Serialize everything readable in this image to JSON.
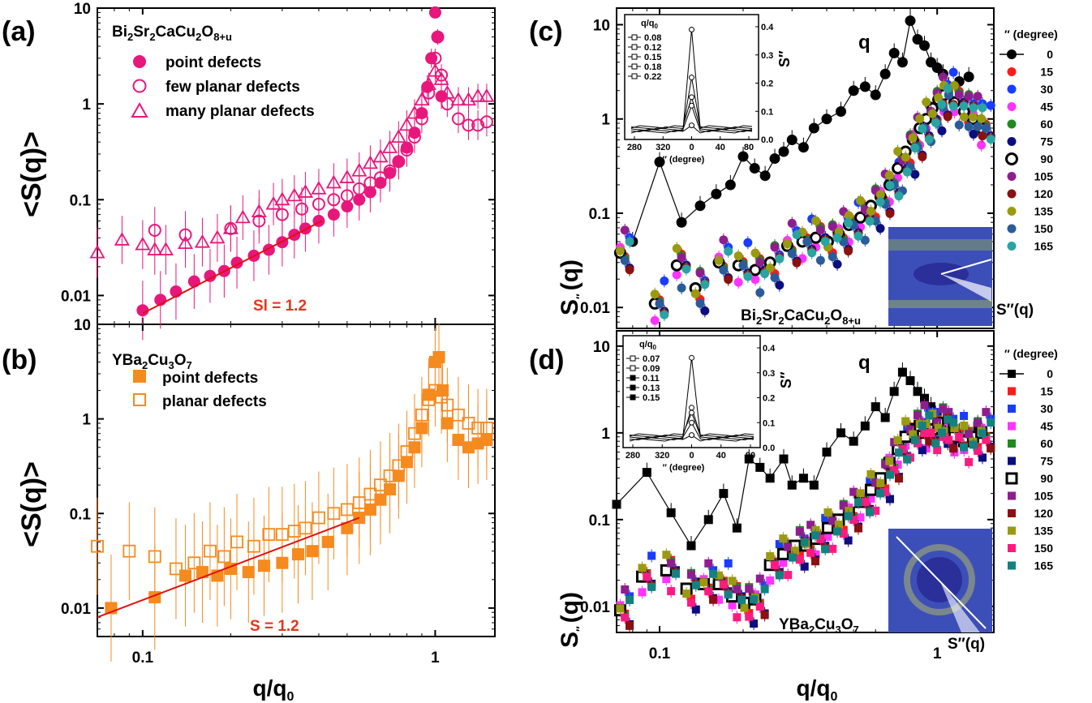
{
  "panels": {
    "a": "(a)",
    "b": "(b)",
    "c": "(c)",
    "d": "(d)"
  },
  "y_label_left": "<S(q)>",
  "y_label_right": "S",
  "y_label_right_sub": "″",
  "y_label_right_tail": "(q)",
  "x_label": "q/q",
  "x_label_sub": "0",
  "a": {
    "material": "Bi",
    "legend": [
      "point defects",
      "few planar defects",
      "many planar defects"
    ],
    "fit": "Sl = 1.2"
  },
  "b": {
    "material": "YBa",
    "legend": [
      "point defects",
      "planar defects"
    ],
    "fit": "S = 1.2"
  },
  "c": {
    "q": "q",
    "inset_title": "q/q",
    "inset_title_sub": "0",
    "inset_xlabel": "″ (degree)",
    "inset_ylabel": "S″",
    "sample": "Bi2Sr2CaCu2O8+u",
    "sq": "S″(q)",
    "angle_header": "″ (degree)"
  },
  "d": {
    "q": "q",
    "inset_title": "q/q",
    "inset_title_sub": "0",
    "inset_xlabel": "″ (degree)",
    "inset_ylabel": "S″",
    "sample": "YBa2Cu3O7",
    "sq": "S″(q)",
    "angle_header": "″ (degree)"
  },
  "chart_data": [
    {
      "panel": "a",
      "type": "scatter",
      "xscale": "log",
      "yscale": "log",
      "xlim": [
        0.07,
        1.6
      ],
      "ylim": [
        0.005,
        10
      ],
      "yticks": [
        0.01,
        0.1,
        1,
        10
      ],
      "series": [
        {
          "name": "point defects",
          "marker": "filled-circle",
          "color": "#e8177c",
          "x": [
            0.1,
            0.115,
            0.13,
            0.15,
            0.17,
            0.19,
            0.21,
            0.24,
            0.27,
            0.3,
            0.33,
            0.36,
            0.4,
            0.45,
            0.5,
            0.55,
            0.6,
            0.65,
            0.7,
            0.75,
            0.8,
            0.85,
            0.9,
            0.94,
            0.97,
            1.0,
            1.02,
            1.05
          ],
          "y": [
            0.007,
            0.009,
            0.011,
            0.014,
            0.016,
            0.018,
            0.022,
            0.026,
            0.03,
            0.036,
            0.043,
            0.05,
            0.06,
            0.07,
            0.085,
            0.1,
            0.12,
            0.15,
            0.19,
            0.25,
            0.35,
            0.5,
            0.8,
            1.5,
            3,
            9,
            5,
            1.2
          ]
        },
        {
          "name": "few planar defects",
          "marker": "open-circle",
          "color": "#e8177c",
          "x": [
            0.11,
            0.14,
            0.2,
            0.25,
            0.3,
            0.35,
            0.4,
            0.45,
            0.5,
            0.55,
            0.6,
            0.65,
            0.7,
            0.75,
            0.8,
            0.85,
            0.9,
            0.95,
            1.0,
            1.02,
            1.05,
            1.1,
            1.2,
            1.3,
            1.4,
            1.5
          ],
          "y": [
            0.048,
            0.043,
            0.05,
            0.06,
            0.07,
            0.08,
            0.09,
            0.1,
            0.11,
            0.13,
            0.15,
            0.17,
            0.2,
            0.25,
            0.33,
            0.45,
            0.7,
            1.3,
            3,
            5,
            2,
            1.0,
            0.7,
            0.6,
            0.6,
            0.65
          ]
        },
        {
          "name": "many planar defects",
          "marker": "open-triangle",
          "color": "#e8177c",
          "x": [
            0.07,
            0.085,
            0.1,
            0.11,
            0.12,
            0.14,
            0.16,
            0.18,
            0.2,
            0.22,
            0.25,
            0.28,
            0.3,
            0.33,
            0.36,
            0.4,
            0.45,
            0.5,
            0.55,
            0.6,
            0.65,
            0.7,
            0.75,
            0.8,
            0.85,
            0.9,
            0.95,
            1.0,
            1.05,
            1.1,
            1.2,
            1.3,
            1.4,
            1.5
          ],
          "y": [
            0.028,
            0.038,
            0.034,
            0.03,
            0.03,
            0.035,
            0.036,
            0.04,
            0.05,
            0.065,
            0.075,
            0.09,
            0.1,
            0.11,
            0.12,
            0.13,
            0.15,
            0.17,
            0.2,
            0.24,
            0.28,
            0.35,
            0.45,
            0.6,
            0.8,
            1.1,
            1.6,
            2.2,
            1.8,
            1.3,
            1.1,
            1.1,
            1.2,
            1.2
          ]
        }
      ],
      "fit_line": {
        "x": [
          0.1,
          0.41
        ],
        "y": [
          0.0065,
          0.06
        ]
      }
    },
    {
      "panel": "b",
      "type": "scatter",
      "xscale": "log",
      "yscale": "log",
      "xlim": [
        0.07,
        1.6
      ],
      "ylim": [
        0.005,
        10
      ],
      "yticks": [
        0.01,
        0.1,
        1,
        10
      ],
      "xticks": [
        0.1,
        1
      ],
      "series": [
        {
          "name": "point defects",
          "marker": "filled-square",
          "color": "#f58a1f",
          "x": [
            0.078,
            0.11,
            0.14,
            0.16,
            0.18,
            0.2,
            0.23,
            0.26,
            0.3,
            0.34,
            0.38,
            0.43,
            0.5,
            0.55,
            0.6,
            0.65,
            0.7,
            0.75,
            0.8,
            0.85,
            0.9,
            0.95,
            1.0,
            1.03,
            1.06,
            1.1,
            1.2,
            1.3,
            1.4,
            1.5
          ],
          "y": [
            0.01,
            0.013,
            0.022,
            0.024,
            0.022,
            0.026,
            0.024,
            0.028,
            0.03,
            0.037,
            0.04,
            0.05,
            0.07,
            0.09,
            0.11,
            0.14,
            0.18,
            0.25,
            0.35,
            0.5,
            0.8,
            1.8,
            4,
            4.5,
            2,
            0.9,
            0.6,
            0.5,
            0.55,
            0.6
          ]
        },
        {
          "name": "planar defects",
          "marker": "open-square",
          "color": "#f58a1f",
          "x": [
            0.07,
            0.09,
            0.11,
            0.13,
            0.15,
            0.17,
            0.19,
            0.21,
            0.24,
            0.27,
            0.3,
            0.33,
            0.36,
            0.4,
            0.45,
            0.5,
            0.55,
            0.6,
            0.65,
            0.7,
            0.75,
            0.8,
            0.85,
            0.9,
            0.95,
            1.0,
            1.05,
            1.1,
            1.2,
            1.3,
            1.4,
            1.5
          ],
          "y": [
            0.045,
            0.04,
            0.035,
            0.026,
            0.03,
            0.04,
            0.035,
            0.05,
            0.045,
            0.06,
            0.06,
            0.065,
            0.07,
            0.09,
            0.1,
            0.11,
            0.13,
            0.16,
            0.2,
            0.25,
            0.32,
            0.45,
            0.7,
            1.1,
            1.6,
            2.0,
            1.7,
            1.4,
            1.1,
            0.9,
            0.8,
            0.8
          ]
        }
      ],
      "fit_line": {
        "x": [
          0.07,
          0.55
        ],
        "y": [
          0.008,
          0.09
        ]
      }
    },
    {
      "panel": "c",
      "type": "scatter",
      "xscale": "log",
      "yscale": "log",
      "xlim": [
        0.07,
        1.6
      ],
      "ylim": [
        0.006,
        15
      ],
      "yticks": [
        0.01,
        0.1,
        1,
        10
      ],
      "angles": [
        "0",
        "15",
        "30",
        "45",
        "60",
        "75",
        "90",
        "105",
        "120",
        "135",
        "150",
        "165"
      ],
      "angle_colors": [
        "#000000",
        "#ff1a1a",
        "#1a3cff",
        "#ff33ff",
        "#1f8a1f",
        "#0d0d80",
        "#000000",
        "#8e1e8e",
        "#8b1010",
        "#9a9a10",
        "#2a5c9a",
        "#2aa3a3"
      ],
      "zero_line": {
        "x": [
          0.08,
          0.1,
          0.12,
          0.14,
          0.16,
          0.18,
          0.2,
          0.22,
          0.24,
          0.26,
          0.28,
          0.3,
          0.33,
          0.36,
          0.4,
          0.45,
          0.5,
          0.55,
          0.6,
          0.65,
          0.7,
          0.75,
          0.8,
          0.85,
          0.9,
          0.95,
          1.0,
          1.05,
          1.1,
          1.2,
          1.3
        ],
        "y": [
          0.05,
          0.35,
          0.08,
          0.12,
          0.16,
          0.2,
          0.4,
          0.3,
          0.25,
          0.38,
          0.45,
          0.6,
          0.5,
          0.8,
          1.0,
          1.2,
          2.0,
          2.2,
          1.8,
          3.0,
          5.0,
          4.0,
          11.0,
          7.0,
          6.0,
          4.0,
          3.5,
          3.0,
          2.2,
          2.5,
          2.8
        ]
      },
      "inset": {
        "xticks": [
          "280",
          "320",
          "0",
          "40",
          "80"
        ],
        "yticks": [
          "0.0",
          "0.1",
          "0.2",
          "0.3",
          "0.4"
        ],
        "legend": [
          "0.08",
          "0.12",
          "0.15",
          "0.18",
          "0.22"
        ],
        "peaks": [
          0.05,
          0.12,
          0.39,
          0.22,
          0.15
        ]
      }
    },
    {
      "panel": "d",
      "type": "scatter",
      "xscale": "log",
      "yscale": "log",
      "xlim": [
        0.07,
        1.6
      ],
      "ylim": [
        0.005,
        15
      ],
      "yticks": [
        0.01,
        0.1,
        1,
        10
      ],
      "xticks": [
        0.1,
        1
      ],
      "angles": [
        "0",
        "15",
        "30",
        "45",
        "60",
        "75",
        "90",
        "105",
        "120",
        "135",
        "150",
        "165"
      ],
      "angle_colors": [
        "#000000",
        "#ff1a1a",
        "#1a3cff",
        "#ff33ff",
        "#1f8a1f",
        "#0d0d80",
        "#000000",
        "#8e1e8e",
        "#8b1010",
        "#9a9a10",
        "#ff1a80",
        "#158080"
      ],
      "zero_line": {
        "x": [
          0.07,
          0.09,
          0.11,
          0.13,
          0.15,
          0.17,
          0.19,
          0.21,
          0.23,
          0.25,
          0.28,
          0.3,
          0.33,
          0.36,
          0.4,
          0.45,
          0.5,
          0.55,
          0.6,
          0.65,
          0.7,
          0.75,
          0.8,
          0.85,
          0.9,
          0.95,
          1.0,
          1.05,
          1.1,
          1.2,
          1.3,
          1.4
        ],
        "y": [
          0.15,
          0.35,
          0.12,
          0.05,
          0.1,
          0.2,
          0.08,
          0.5,
          0.4,
          0.3,
          0.5,
          0.25,
          0.3,
          0.25,
          0.6,
          1.0,
          0.8,
          1.2,
          2.0,
          1.5,
          3.0,
          5.0,
          4.0,
          3.0,
          2.5,
          2.0,
          1.5,
          1.3,
          1.2,
          1.0,
          0.9,
          1.2
        ]
      },
      "inset": {
        "xticks": [
          "280",
          "320",
          "0",
          "40",
          "80"
        ],
        "yticks": [
          "0.0",
          "0.1",
          "0.2",
          "0.3",
          "0.4"
        ],
        "legend": [
          "0.07",
          "0.09",
          "0.11",
          "0.13",
          "0.15"
        ],
        "peaks": [
          0.05,
          0.1,
          0.36,
          0.16,
          0.14
        ]
      }
    }
  ]
}
